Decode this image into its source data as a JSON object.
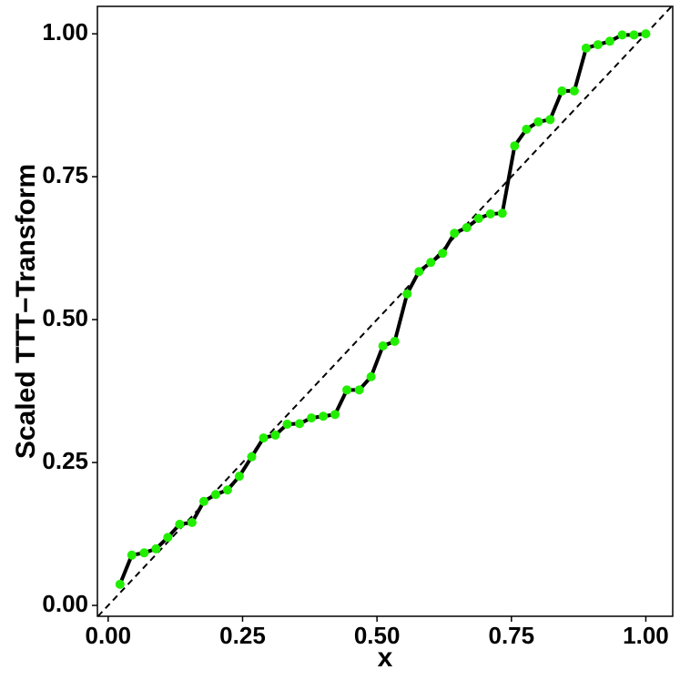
{
  "chart_data": {
    "type": "line",
    "x_label": "x",
    "y_label": "Scaled TTT−Transform",
    "x": [
      0.022,
      0.044,
      0.067,
      0.089,
      0.111,
      0.133,
      0.156,
      0.178,
      0.2,
      0.222,
      0.244,
      0.267,
      0.289,
      0.311,
      0.333,
      0.356,
      0.378,
      0.4,
      0.422,
      0.444,
      0.467,
      0.489,
      0.511,
      0.533,
      0.556,
      0.578,
      0.6,
      0.622,
      0.644,
      0.667,
      0.689,
      0.711,
      0.733,
      0.756,
      0.778,
      0.8,
      0.822,
      0.844,
      0.867,
      0.889,
      0.911,
      0.933,
      0.956,
      0.978,
      1.0
    ],
    "series": [
      {
        "color": "#000000",
        "marker_color": "#22ee00",
        "values": [
          0.037,
          0.088,
          0.092,
          0.099,
          0.119,
          0.142,
          0.145,
          0.182,
          0.194,
          0.202,
          0.226,
          0.26,
          0.293,
          0.298,
          0.317,
          0.318,
          0.328,
          0.331,
          0.334,
          0.377,
          0.377,
          0.4,
          0.454,
          0.462,
          0.545,
          0.584,
          0.6,
          0.616,
          0.651,
          0.661,
          0.677,
          0.685,
          0.686,
          0.804,
          0.833,
          0.846,
          0.85,
          0.9,
          0.9,
          0.975,
          0.981,
          0.987,
          0.998,
          0.998,
          1.0
        ]
      }
    ],
    "xlim": [
      -0.02,
      1.05
    ],
    "ylim": [
      -0.019,
      1.048
    ],
    "xticks": [
      {
        "value": 0,
        "label": "0.00"
      },
      {
        "value": 0.25,
        "label": "0.25"
      },
      {
        "value": 0.5,
        "label": "0.50"
      },
      {
        "value": 0.75,
        "label": "0.75"
      },
      {
        "value": 1,
        "label": "1.00"
      }
    ],
    "yticks": [
      {
        "value": 0,
        "label": "0.00"
      },
      {
        "value": 0.25,
        "label": "0.25"
      },
      {
        "value": 0.5,
        "label": "0.50"
      },
      {
        "value": 0.75,
        "label": "0.75"
      },
      {
        "value": 1,
        "label": "1.00"
      }
    ],
    "reference_diagonal": true,
    "grid": false
  }
}
